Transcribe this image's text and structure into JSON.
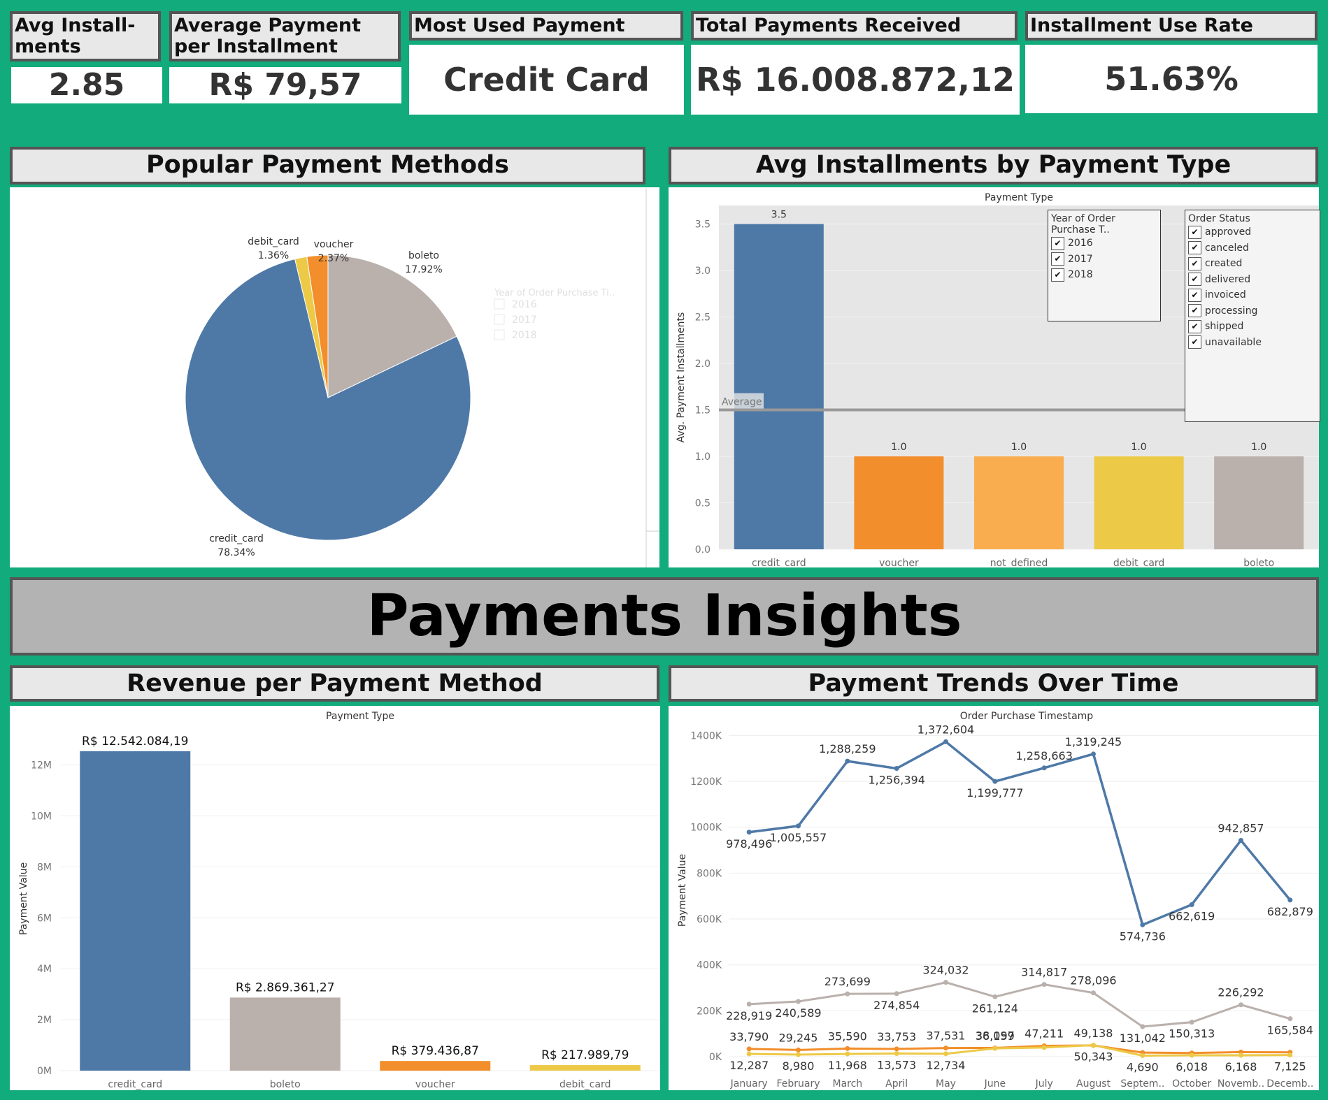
{
  "kpis": [
    {
      "title": "Avg Install-\nments",
      "value": "2.85"
    },
    {
      "title": "Average Payment per Installment",
      "value": "R$ 79,57"
    },
    {
      "title": "Most Used Payment Type",
      "value": "Credit Card"
    },
    {
      "title": "Total Payments Received",
      "value": "R$ 16.008.872,12"
    },
    {
      "title": "Installment Use Rate",
      "value": "51.63%"
    }
  ],
  "sections": {
    "popular": "Popular Payment Methods",
    "avg_installments": "Avg Installments by Payment Type",
    "banner": "Payments Insights",
    "revenue": "Revenue per Payment Method",
    "trends": "Payment Trends Over Time"
  },
  "filters": {
    "year_title": "Year of Order Purchase T..",
    "year_title_faded": "Year of Order Purchase Ti..",
    "years": [
      "2016",
      "2017",
      "2018"
    ],
    "status_title": "Order Status",
    "statuses": [
      "approved",
      "canceled",
      "created",
      "delivered",
      "invoiced",
      "processing",
      "shipped",
      "unavailable"
    ]
  },
  "colors": {
    "credit_card": "#4e79a7",
    "boleto": "#bab0ac",
    "voucher": "#f28e2b",
    "debit_card": "#edc948",
    "not_defined": "#f9ad4f"
  },
  "chart_data": [
    {
      "type": "pie",
      "slices": [
        {
          "name": "boleto",
          "label": "17.92%",
          "value": 17.92
        },
        {
          "name": "credit_card",
          "label": "78.34%",
          "value": 78.34
        },
        {
          "name": "debit_card",
          "label": "1.36%",
          "value": 1.36
        },
        {
          "name": "voucher",
          "label": "2.37%",
          "value": 2.37
        }
      ]
    },
    {
      "type": "bar",
      "title": "Payment Type",
      "ylabel": "Avg. Payment Installments",
      "categories": [
        "credit_card",
        "voucher",
        "not_defined",
        "debit_card",
        "boleto"
      ],
      "values": [
        3.5,
        1.0,
        1.0,
        1.0,
        1.0
      ],
      "value_labels": [
        "3.5",
        "1.0",
        "1.0",
        "1.0",
        "1.0"
      ],
      "ylim": [
        0,
        3.7
      ],
      "yticks": [
        0.0,
        0.5,
        1.0,
        1.5,
        2.0,
        2.5,
        3.0,
        3.5
      ],
      "ytick_labels": [
        "0.0",
        "0.5",
        "1.0",
        "1.5",
        "2.0",
        "2.5",
        "3.0",
        "3.5"
      ],
      "reference_line": {
        "label": "Average",
        "value": 1.5
      }
    },
    {
      "type": "bar",
      "title": "Payment Type",
      "ylabel": "Payment Value",
      "categories": [
        "credit_card",
        "boleto",
        "voucher",
        "debit_card"
      ],
      "values": [
        12542084.19,
        2869361.27,
        379436.87,
        217989.79
      ],
      "value_labels": [
        "R$ 12.542.084,19",
        "R$ 2.869.361,27",
        "R$ 379.436,87",
        "R$ 217.989,79"
      ],
      "ylim": [
        0,
        13500000
      ],
      "yticks": [
        0,
        2000000,
        4000000,
        6000000,
        8000000,
        10000000,
        12000000
      ],
      "ytick_labels": [
        "0M",
        "2M",
        "4M",
        "6M",
        "8M",
        "10M",
        "12M"
      ]
    },
    {
      "type": "line",
      "title": "Order Purchase Timestamp",
      "ylabel": "Payment Value",
      "categories": [
        "January",
        "February",
        "March",
        "April",
        "May",
        "June",
        "July",
        "August",
        "Septem..",
        "October",
        "Novemb..",
        "Decemb.."
      ],
      "ylim": [
        0,
        1450000
      ],
      "yticks": [
        0,
        200000,
        400000,
        600000,
        800000,
        1000000,
        1200000,
        1400000
      ],
      "ytick_labels": [
        "0K",
        "200K",
        "400K",
        "600K",
        "800K",
        "1000K",
        "1200K",
        "1400K"
      ],
      "series": [
        {
          "key": "credit_card",
          "values": [
            978496,
            1005557,
            1288259,
            1256394,
            1372604,
            1199777,
            1258663,
            1319245,
            574736,
            662619,
            942857,
            682879
          ],
          "labels": [
            "978,496",
            "1,005,557",
            "1,288,259",
            "1,256,394",
            "1,372,604",
            "1,199,777",
            "1,258,663",
            "1,319,245",
            "574,736",
            "662,619",
            "942,857",
            "682,879"
          ]
        },
        {
          "key": "boleto",
          "values": [
            228919,
            240589,
            273699,
            274854,
            324032,
            261124,
            314817,
            278096,
            131042,
            150313,
            226292,
            165584
          ],
          "labels": [
            "228,919",
            "240,589",
            "273,699",
            "274,854",
            "324,032",
            "261,124",
            "314,817",
            "278,096",
            "131,042",
            "150,313",
            "226,292",
            "165,584"
          ]
        },
        {
          "key": "voucher",
          "values": [
            33790,
            29245,
            35590,
            33753,
            37531,
            38097,
            47211,
            49138,
            18000,
            16000,
            20000,
            19000
          ],
          "labels": [
            "33,790",
            "29,245",
            "35,590",
            "33,753",
            "37,531",
            "38,097",
            "47,211",
            "49,138",
            "",
            "",
            "",
            ""
          ]
        },
        {
          "key": "debit_card",
          "values": [
            12287,
            8980,
            11968,
            13573,
            12734,
            36159,
            40000,
            50343,
            4690,
            6018,
            6168,
            7125
          ],
          "labels": [
            "12,287",
            "8,980",
            "11,968",
            "13,573",
            "12,734",
            "36,159",
            "",
            "50,343",
            "4,690",
            "6,018",
            "6,168",
            "7,125"
          ]
        }
      ]
    }
  ]
}
